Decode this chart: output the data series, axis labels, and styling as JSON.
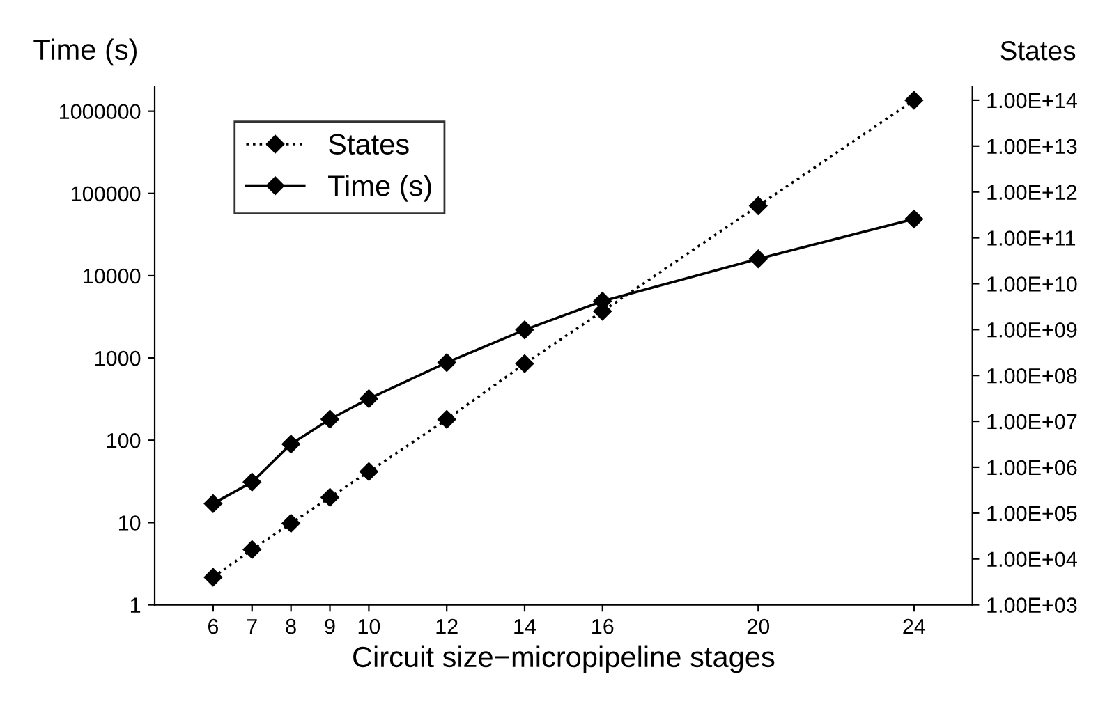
{
  "chart_data": [
    {
      "type": "line",
      "xlabel": "Circuit size−micropipeline stages",
      "ylabel": "Time (s)",
      "x": [
        6,
        7,
        8,
        9,
        10,
        12,
        14,
        16,
        20,
        24
      ],
      "series": [
        {
          "name": "Time (s)",
          "color": "#000000",
          "line_style": "solid",
          "marker": "diamond",
          "values": [
            17,
            31,
            90,
            180,
            320,
            880,
            2200,
            4900,
            16000,
            49000
          ]
        }
      ],
      "log": "y",
      "xlim": [
        4.5,
        25.5
      ],
      "xticks": [
        6,
        7,
        8,
        9,
        10,
        12,
        14,
        16,
        20,
        24
      ],
      "ylim": [
        1,
        2000000
      ],
      "yticks": [
        1,
        10,
        100,
        1000,
        10000,
        100000,
        1000000
      ],
      "grid": false,
      "legend": "top left"
    },
    {
      "type": "line",
      "ylabel": "States",
      "x": [
        6,
        7,
        8,
        9,
        10,
        12,
        14,
        16,
        20,
        24
      ],
      "series": [
        {
          "name": "States",
          "color": "#000000",
          "line_style": "dotted",
          "marker": "diamond",
          "values": [
            4000,
            16000,
            60000,
            220000,
            800000,
            11000000,
            180000000,
            2500000000,
            500000000000,
            100000000000000
          ]
        }
      ],
      "log": "y",
      "xlim": [
        4.5,
        25.5
      ],
      "ylim": [
        1000,
        200000000000000
      ],
      "yticks": [
        {
          "value": 1000,
          "label": "1.00E+03"
        },
        {
          "value": 10000,
          "label": "1.00E+04"
        },
        {
          "value": 100000,
          "label": "1.00E+05"
        },
        {
          "value": 1000000,
          "label": "1.00E+06"
        },
        {
          "value": 10000000,
          "label": "1.00E+07"
        },
        {
          "value": 100000000,
          "label": "1.00E+08"
        },
        {
          "value": 1000000000,
          "label": "1.00E+09"
        },
        {
          "value": 10000000000,
          "label": "1.00E+10"
        },
        {
          "value": 100000000000,
          "label": "1.00E+11"
        },
        {
          "value": 1000000000000,
          "label": "1.00E+12"
        },
        {
          "value": 10000000000000,
          "label": "1.00E+13"
        },
        {
          "value": 100000000000000,
          "label": "1.00E+14"
        }
      ],
      "tick_labels": "y",
      "grid": false,
      "legend": "top left"
    }
  ]
}
